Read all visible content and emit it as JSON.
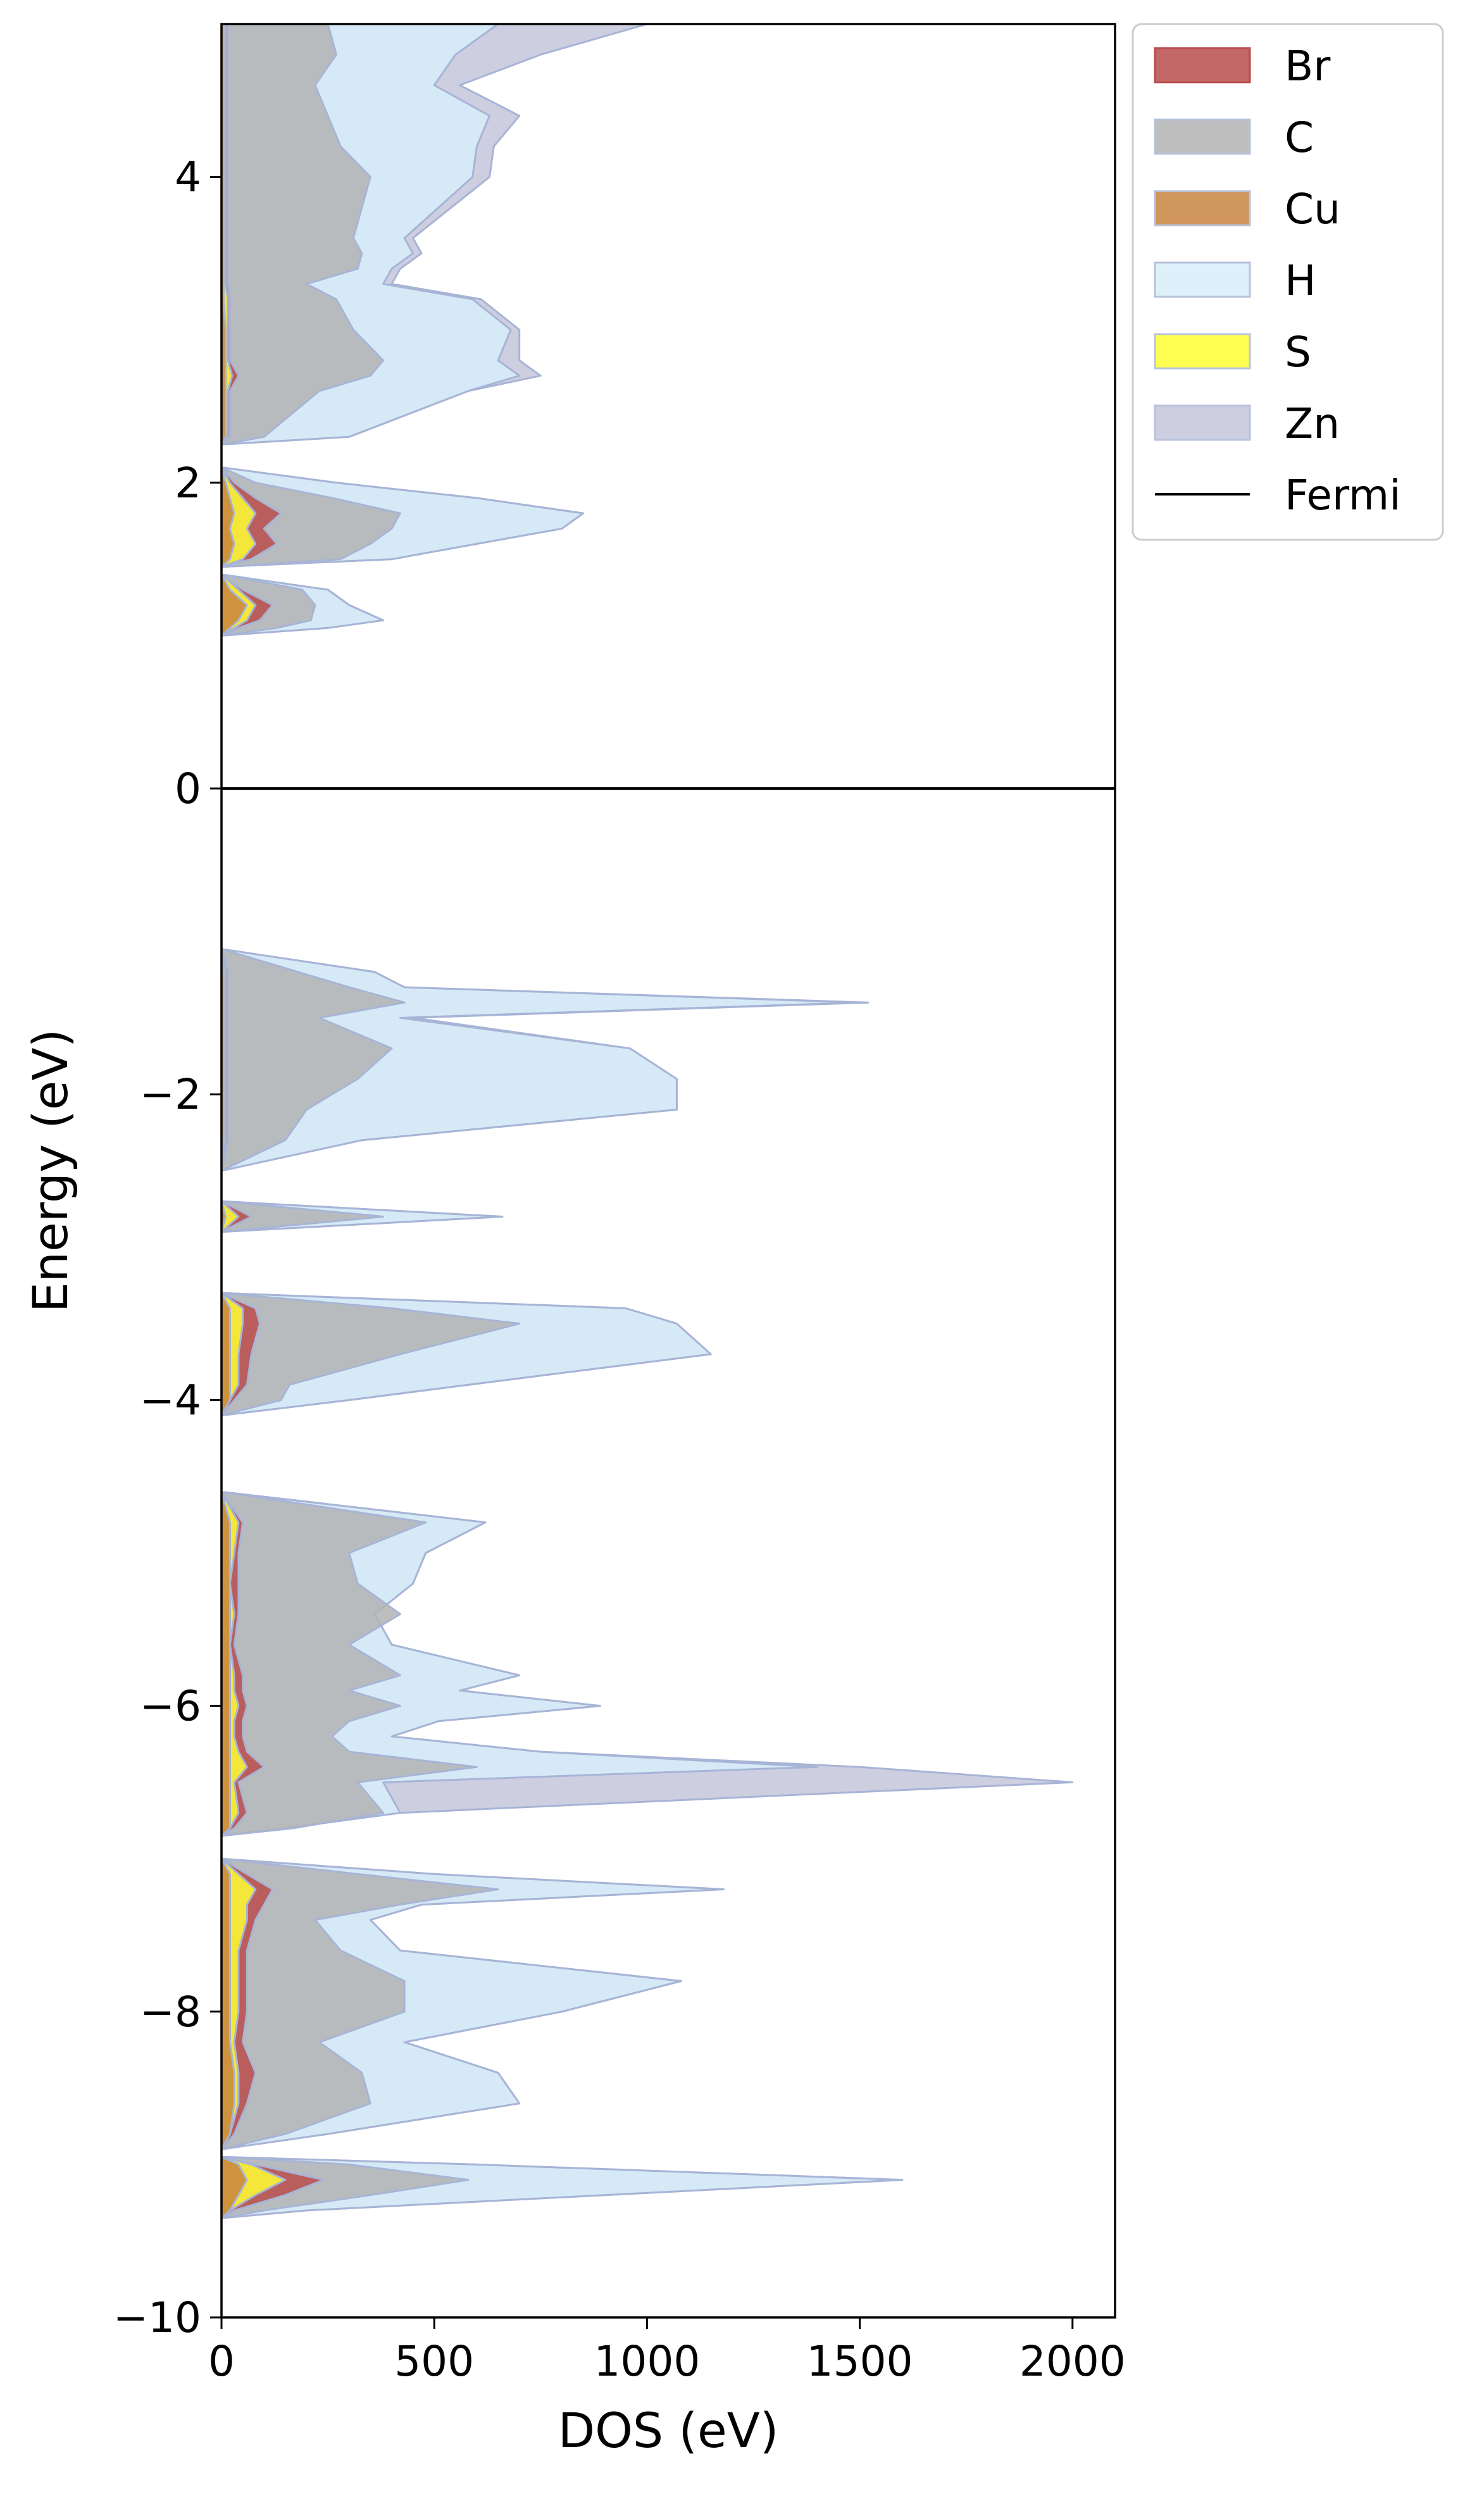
{
  "chart_data": {
    "type": "area",
    "orientation": "horizontal",
    "xlabel": "DOS (eV)",
    "ylabel": "Energy (eV)",
    "xlim": [
      0,
      2100
    ],
    "ylim": [
      -10,
      5
    ],
    "x_ticks": [
      0,
      500,
      1000,
      1500,
      2000
    ],
    "x_tick_labels": [
      "0",
      "500",
      "1000",
      "1500",
      "2000"
    ],
    "y_ticks": [
      -10,
      -8,
      -6,
      -4,
      -2,
      0,
      2,
      4
    ],
    "y_tick_labels": [
      "−10",
      "−8",
      "−6",
      "−4",
      "−2",
      "0",
      "2",
      "4"
    ],
    "grid": false,
    "legend_position": "outside-top-right",
    "fermi_level": 0,
    "energy": [
      -9.35,
      -9.3,
      -9.2,
      -9.1,
      -9.0,
      -8.95,
      -8.9,
      -8.8,
      -8.6,
      -8.4,
      -8.2,
      -8.0,
      -7.8,
      -7.6,
      -7.4,
      -7.3,
      -7.2,
      -7.1,
      -7.0,
      -6.9,
      -6.85,
      -6.8,
      -6.7,
      -6.5,
      -6.4,
      -6.3,
      -6.2,
      -6.1,
      -6.0,
      -5.9,
      -5.8,
      -5.6,
      -5.4,
      -5.2,
      -5.0,
      -4.8,
      -4.6,
      -4.5,
      -4.4,
      -4.3,
      -4.2,
      -4.15,
      -4.1,
      -4.0,
      -3.9,
      -3.7,
      -3.5,
      -3.4,
      -3.3,
      -3.1,
      -3.05,
      -3.0,
      -2.95,
      -2.9,
      -2.8,
      -2.7,
      -2.6,
      -2.55,
      -2.5,
      -2.3,
      -2.1,
      -1.9,
      -1.7,
      -1.5,
      -1.4,
      -1.3,
      -1.2,
      -1.05,
      -0.9,
      -0.85,
      1.0,
      1.05,
      1.1,
      1.2,
      1.3,
      1.4,
      1.45,
      1.5,
      1.6,
      1.7,
      1.8,
      1.9,
      2.0,
      2.1,
      2.15,
      2.2,
      2.25,
      2.3,
      2.6,
      2.7,
      2.8,
      3.0,
      3.2,
      3.3,
      3.4,
      3.5,
      3.6,
      4.0,
      4.2,
      4.4,
      4.6,
      4.8,
      5.0
    ],
    "series": [
      {
        "name": "Cu",
        "color": "#c8843f",
        "values": [
          0,
          20,
          40,
          60,
          40,
          0,
          0,
          20,
          30,
          30,
          20,
          20,
          20,
          20,
          20,
          20,
          20,
          20,
          0,
          0,
          0,
          20,
          20,
          20,
          20,
          20,
          20,
          20,
          20,
          20,
          20,
          20,
          20,
          20,
          20,
          20,
          0,
          0,
          0,
          0,
          0,
          0,
          0,
          20,
          20,
          20,
          20,
          20,
          0,
          0,
          0,
          0,
          0,
          0,
          10,
          0,
          0,
          0,
          0,
          5,
          5,
          5,
          5,
          5,
          5,
          5,
          5,
          0,
          0,
          0,
          0,
          20,
          40,
          60,
          20,
          0,
          0,
          20,
          30,
          20,
          30,
          20,
          10,
          0,
          0,
          0,
          0,
          10,
          10,
          10,
          10,
          10,
          5,
          5,
          5,
          5,
          5,
          5,
          5,
          5,
          5,
          5,
          5
        ]
      },
      {
        "name": "S",
        "color": "#ffff33",
        "values": [
          0,
          20,
          80,
          150,
          70,
          0,
          0,
          20,
          40,
          40,
          30,
          40,
          40,
          40,
          60,
          60,
          80,
          40,
          0,
          0,
          0,
          20,
          40,
          30,
          60,
          40,
          30,
          30,
          40,
          30,
          30,
          20,
          30,
          20,
          30,
          40,
          0,
          0,
          0,
          0,
          0,
          0,
          0,
          20,
          40,
          40,
          50,
          50,
          0,
          0,
          0,
          0,
          0,
          0,
          40,
          0,
          0,
          0,
          0,
          10,
          10,
          10,
          10,
          10,
          10,
          10,
          10,
          0,
          0,
          0,
          0,
          30,
          60,
          80,
          40,
          0,
          0,
          50,
          80,
          60,
          80,
          50,
          20,
          0,
          0,
          0,
          0,
          15,
          15,
          25,
          15,
          15,
          15,
          10,
          10,
          10,
          10,
          10,
          10,
          10,
          10,
          10,
          10
        ]
      },
      {
        "name": "Br",
        "color": "#b84c4c",
        "values": [
          0,
          30,
          150,
          240,
          80,
          0,
          0,
          30,
          60,
          80,
          50,
          60,
          60,
          60,
          80,
          100,
          120,
          60,
          0,
          0,
          0,
          30,
          60,
          40,
          100,
          60,
          50,
          50,
          60,
          50,
          50,
          30,
          40,
          40,
          40,
          50,
          0,
          0,
          0,
          0,
          0,
          0,
          0,
          30,
          60,
          70,
          90,
          80,
          0,
          0,
          0,
          0,
          0,
          0,
          70,
          0,
          0,
          0,
          0,
          15,
          15,
          15,
          15,
          15,
          15,
          15,
          15,
          0,
          0,
          0,
          0,
          40,
          90,
          120,
          50,
          0,
          0,
          70,
          130,
          100,
          140,
          80,
          30,
          0,
          0,
          0,
          0,
          20,
          20,
          40,
          20,
          20,
          20,
          15,
          15,
          15,
          15,
          15,
          15,
          15,
          15,
          15,
          15
        ]
      },
      {
        "name": "C",
        "color": "#b3b3b3",
        "values": [
          0,
          100,
          350,
          580,
          300,
          0,
          0,
          150,
          350,
          330,
          230,
          430,
          430,
          280,
          220,
          420,
          650,
          320,
          0,
          0,
          0,
          170,
          380,
          320,
          600,
          300,
          260,
          300,
          420,
          300,
          420,
          300,
          420,
          320,
          300,
          480,
          0,
          0,
          0,
          0,
          0,
          0,
          0,
          140,
          160,
          420,
          700,
          400,
          0,
          0,
          0,
          0,
          0,
          0,
          380,
          0,
          0,
          0,
          0,
          150,
          200,
          320,
          400,
          230,
          430,
          300,
          180,
          0,
          0,
          0,
          0,
          130,
          210,
          220,
          190,
          0,
          0,
          280,
          350,
          400,
          420,
          260,
          80,
          0,
          0,
          0,
          0,
          100,
          230,
          350,
          380,
          310,
          270,
          200,
          320,
          330,
          310,
          350,
          280,
          250,
          220,
          270,
          250
        ]
      },
      {
        "name": "H",
        "color": "#d6eef9",
        "values": [
          0,
          200,
          900,
          1600,
          600,
          0,
          0,
          250,
          700,
          650,
          430,
          800,
          1080,
          420,
          350,
          470,
          1180,
          500,
          0,
          0,
          0,
          150,
          420,
          380,
          1400,
          750,
          400,
          510,
          890,
          560,
          700,
          400,
          360,
          450,
          480,
          620,
          0,
          0,
          0,
          0,
          0,
          0,
          0,
          300,
          580,
          1150,
          1070,
          950,
          0,
          0,
          0,
          0,
          0,
          0,
          660,
          0,
          0,
          0,
          0,
          330,
          1070,
          1070,
          960,
          420,
          1500,
          430,
          360,
          0,
          0,
          0,
          0,
          250,
          380,
          300,
          250,
          0,
          0,
          400,
          600,
          800,
          850,
          600,
          270,
          0,
          0,
          0,
          0,
          300,
          580,
          700,
          650,
          680,
          590,
          380,
          400,
          450,
          430,
          590,
          600,
          630,
          500,
          550,
          650
        ]
      },
      {
        "name": "Zn",
        "color": "#c5c5dc",
        "values": [
          0,
          200,
          900,
          1600,
          600,
          0,
          0,
          250,
          700,
          650,
          430,
          800,
          1080,
          420,
          350,
          470,
          1180,
          500,
          0,
          0,
          0,
          150,
          420,
          2000,
          1500,
          750,
          400,
          510,
          890,
          560,
          700,
          400,
          360,
          450,
          480,
          620,
          0,
          0,
          0,
          0,
          0,
          0,
          0,
          300,
          580,
          1150,
          1070,
          950,
          0,
          0,
          0,
          0,
          0,
          0,
          660,
          0,
          0,
          0,
          0,
          330,
          1070,
          1070,
          960,
          450,
          1520,
          430,
          360,
          0,
          0,
          0,
          0,
          250,
          380,
          300,
          250,
          0,
          0,
          400,
          600,
          800,
          850,
          600,
          270,
          0,
          0,
          0,
          0,
          300,
          580,
          750,
          700,
          700,
          610,
          400,
          420,
          470,
          450,
          630,
          640,
          700,
          560,
          750,
          1000
        ]
      }
    ],
    "legend": [
      {
        "label": "Br",
        "color": "#b84c4c"
      },
      {
        "label": "C",
        "color": "#b3b3b3"
      },
      {
        "label": "Cu",
        "color": "#c8843f"
      },
      {
        "label": "H",
        "color": "#d6eef9"
      },
      {
        "label": "S",
        "color": "#ffff33"
      },
      {
        "label": "Zn",
        "color": "#c5c5dc"
      },
      {
        "label": "Fermi",
        "color": "#000000"
      }
    ]
  }
}
